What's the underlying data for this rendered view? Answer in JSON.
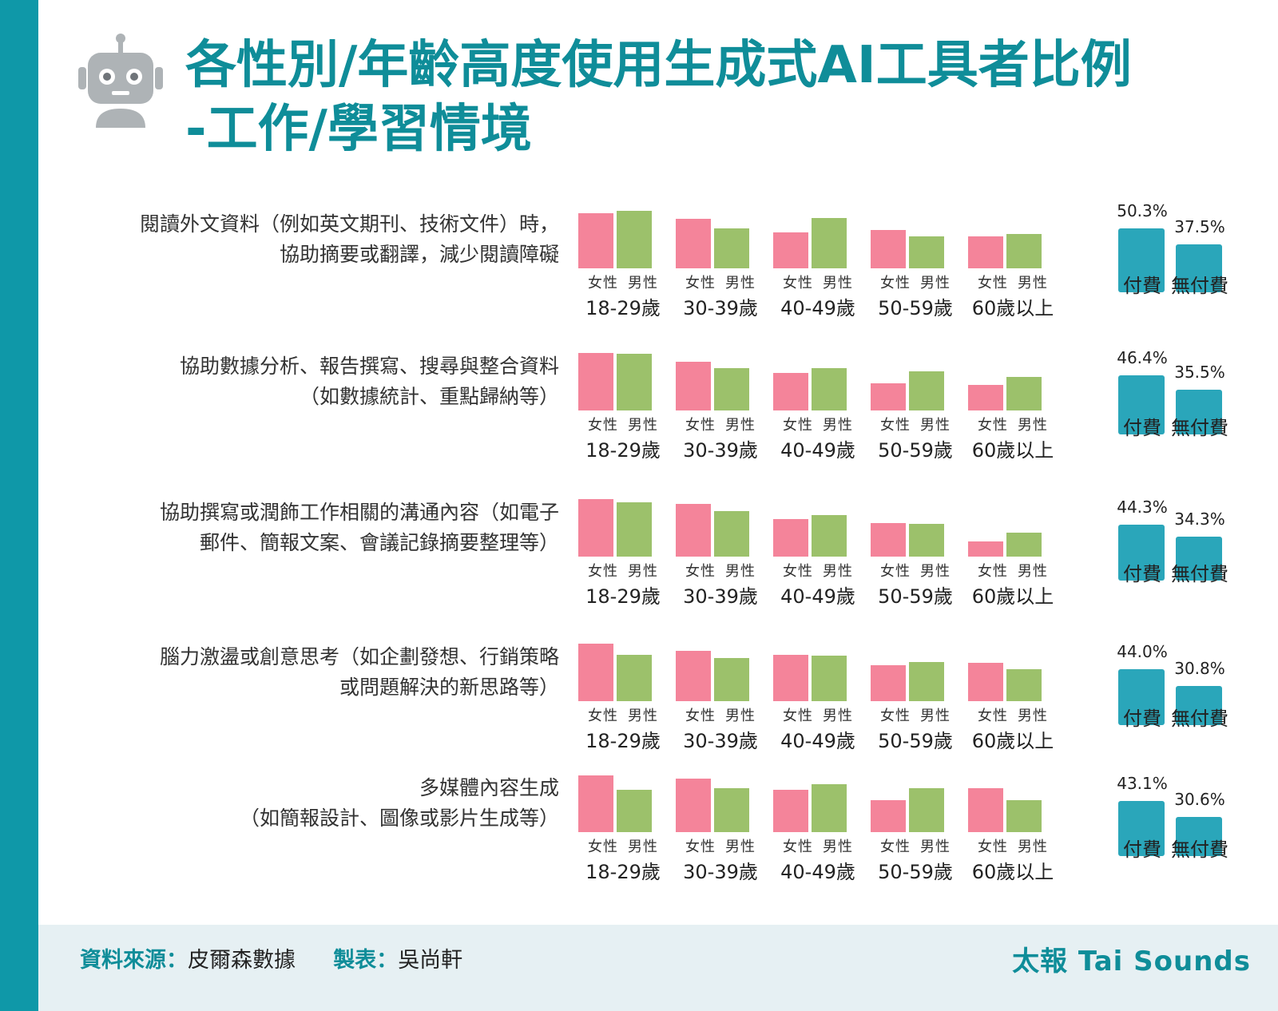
{
  "title": {
    "line1": "各性別/年齡高度使用生成式AI工具者比例",
    "line2": "-工作/學習情境"
  },
  "colors": {
    "female": "#f4849a",
    "male": "#9cc16b",
    "pay": "#2aa6ba",
    "accent": "#0f8d99",
    "stripe": "#0f98a8"
  },
  "icons": {
    "logo": "robot-icon"
  },
  "footer": {
    "source_key": "資料來源：",
    "source_val": "皮爾森數據",
    "maker_key": "製表：",
    "maker_val": "吳尚軒",
    "brand": "太報 Tai Sounds"
  },
  "chart_data": {
    "type": "bar",
    "sex_labels": [
      "女性",
      "男性"
    ],
    "age_groups": [
      "18-29歲",
      "30-39歲",
      "40-49歲",
      "50-59歲",
      "60歲以上"
    ],
    "pay_labels": [
      "付費",
      "無付費"
    ],
    "rows": [
      {
        "label_lines": [
          "閱讀外文資料（例如英文期刊、技術文件）時，",
          "協助摘要或翻譯，減少閱讀障礙"
        ],
        "female": [
          0.96,
          0.86,
          0.62,
          0.66,
          0.55
        ],
        "male": [
          1.0,
          0.69,
          0.88,
          0.56,
          0.6
        ],
        "pay": [
          50.3,
          37.5
        ],
        "pay_labels": [
          "50.3%",
          "37.5%"
        ]
      },
      {
        "label_lines": [
          "協助數據分析、報告撰寫、搜尋與整合資料",
          "（如數據統計、重點歸納等）"
        ],
        "female": [
          1.0,
          0.85,
          0.65,
          0.47,
          0.45
        ],
        "male": [
          0.98,
          0.73,
          0.74,
          0.68,
          0.59
        ],
        "pay": [
          46.4,
          35.5
        ],
        "pay_labels": [
          "46.4%",
          "35.5%"
        ]
      },
      {
        "label_lines": [
          "協助撰寫或潤飾工作相關的溝通內容（如電子",
          "郵件、簡報文案、會議記錄摘要整理等）"
        ],
        "female": [
          1.0,
          0.91,
          0.65,
          0.59,
          0.26
        ],
        "male": [
          0.94,
          0.79,
          0.72,
          0.57,
          0.41
        ],
        "pay": [
          44.3,
          34.3
        ],
        "pay_labels": [
          "44.3%",
          "34.3%"
        ]
      },
      {
        "label_lines": [
          "腦力激盪或創意思考（如企劃發想、行銷策略",
          "或問題解決的新思路等）"
        ],
        "female": [
          1.0,
          0.88,
          0.81,
          0.62,
          0.66
        ],
        "male": [
          0.81,
          0.75,
          0.79,
          0.68,
          0.55
        ],
        "pay": [
          44.0,
          30.8
        ],
        "pay_labels": [
          "44.0%",
          "30.8%"
        ]
      },
      {
        "label_lines": [
          "多媒體內容生成",
          "（如簡報設計、圖像或影片生成等）"
        ],
        "female": [
          0.98,
          0.93,
          0.74,
          0.56,
          0.76
        ],
        "male": [
          0.74,
          0.76,
          0.84,
          0.76,
          0.55
        ],
        "pay": [
          43.1,
          30.6
        ],
        "pay_labels": [
          "43.1%",
          "30.6%"
        ]
      }
    ]
  }
}
